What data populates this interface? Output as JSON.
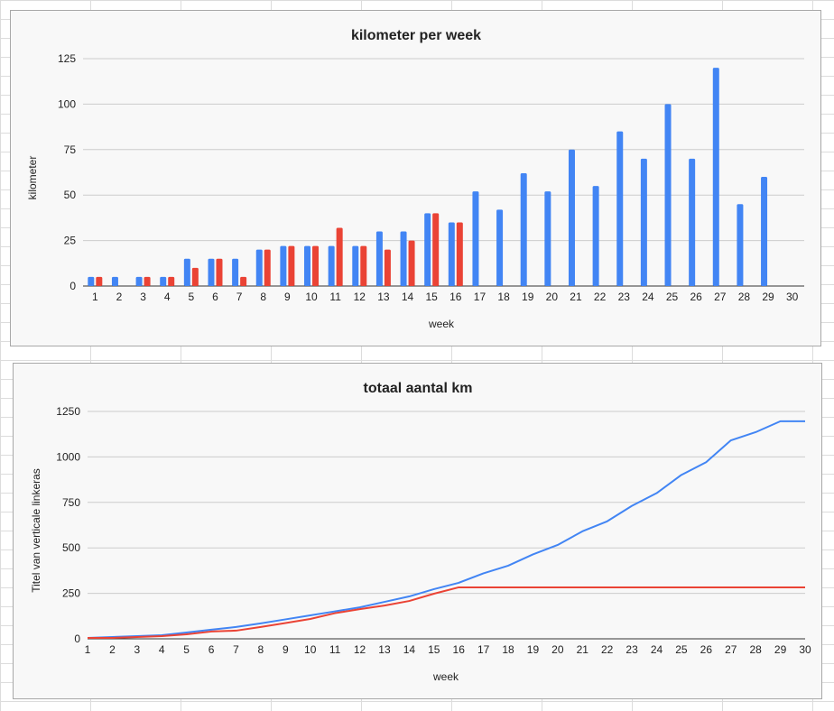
{
  "chart_data": [
    {
      "type": "bar",
      "title": "kilometer per week",
      "xlabel": "week",
      "ylabel": "kilometer",
      "ylim": [
        0,
        125
      ],
      "yticks": [
        "0",
        "25",
        "50",
        "75",
        "100",
        "125"
      ],
      "grid": true,
      "legend": "none",
      "categories": [
        "1",
        "2",
        "3",
        "4",
        "5",
        "6",
        "7",
        "8",
        "9",
        "10",
        "11",
        "12",
        "13",
        "14",
        "15",
        "16",
        "17",
        "18",
        "19",
        "20",
        "21",
        "22",
        "23",
        "24",
        "25",
        "26",
        "27",
        "28",
        "29",
        "30"
      ],
      "series": [
        {
          "color": "#4285f4",
          "values": [
            5,
            5,
            5,
            5,
            15,
            15,
            15,
            20,
            22,
            22,
            22,
            22,
            30,
            30,
            40,
            35,
            52,
            42,
            62,
            52,
            75,
            55,
            85,
            70,
            100,
            70,
            120,
            45,
            60,
            null
          ]
        },
        {
          "color": "#ea4335",
          "values": [
            5,
            null,
            5,
            5,
            10,
            15,
            5,
            20,
            22,
            22,
            32,
            22,
            20,
            25,
            40,
            35,
            null,
            null,
            null,
            null,
            null,
            null,
            null,
            null,
            null,
            null,
            null,
            null,
            null,
            null
          ]
        }
      ]
    },
    {
      "type": "line",
      "title": "totaal aantal km",
      "xlabel": "week",
      "ylabel": "Titel van verticale linkeras",
      "ylim": [
        0,
        1250
      ],
      "yticks": [
        "0",
        "250",
        "500",
        "750",
        "1000",
        "1250"
      ],
      "grid": true,
      "legend": "none",
      "categories": [
        "1",
        "2",
        "3",
        "4",
        "5",
        "6",
        "7",
        "8",
        "9",
        "10",
        "11",
        "12",
        "13",
        "14",
        "15",
        "16",
        "17",
        "18",
        "19",
        "20",
        "21",
        "22",
        "23",
        "24",
        "25",
        "26",
        "27",
        "28",
        "29",
        "30"
      ],
      "series": [
        {
          "color": "#4285f4",
          "values": [
            5,
            10,
            15,
            20,
            35,
            50,
            65,
            85,
            107,
            129,
            151,
            173,
            203,
            233,
            273,
            308,
            360,
            402,
            464,
            516,
            591,
            646,
            731,
            801,
            901,
            971,
            1091,
            1136,
            1196,
            1196
          ]
        },
        {
          "color": "#ea4335",
          "values": [
            5,
            5,
            10,
            15,
            25,
            40,
            45,
            65,
            87,
            109,
            141,
            163,
            183,
            208,
            248,
            283,
            283,
            283,
            283,
            283,
            283,
            283,
            283,
            283,
            283,
            283,
            283,
            283,
            283,
            283
          ]
        }
      ]
    }
  ]
}
